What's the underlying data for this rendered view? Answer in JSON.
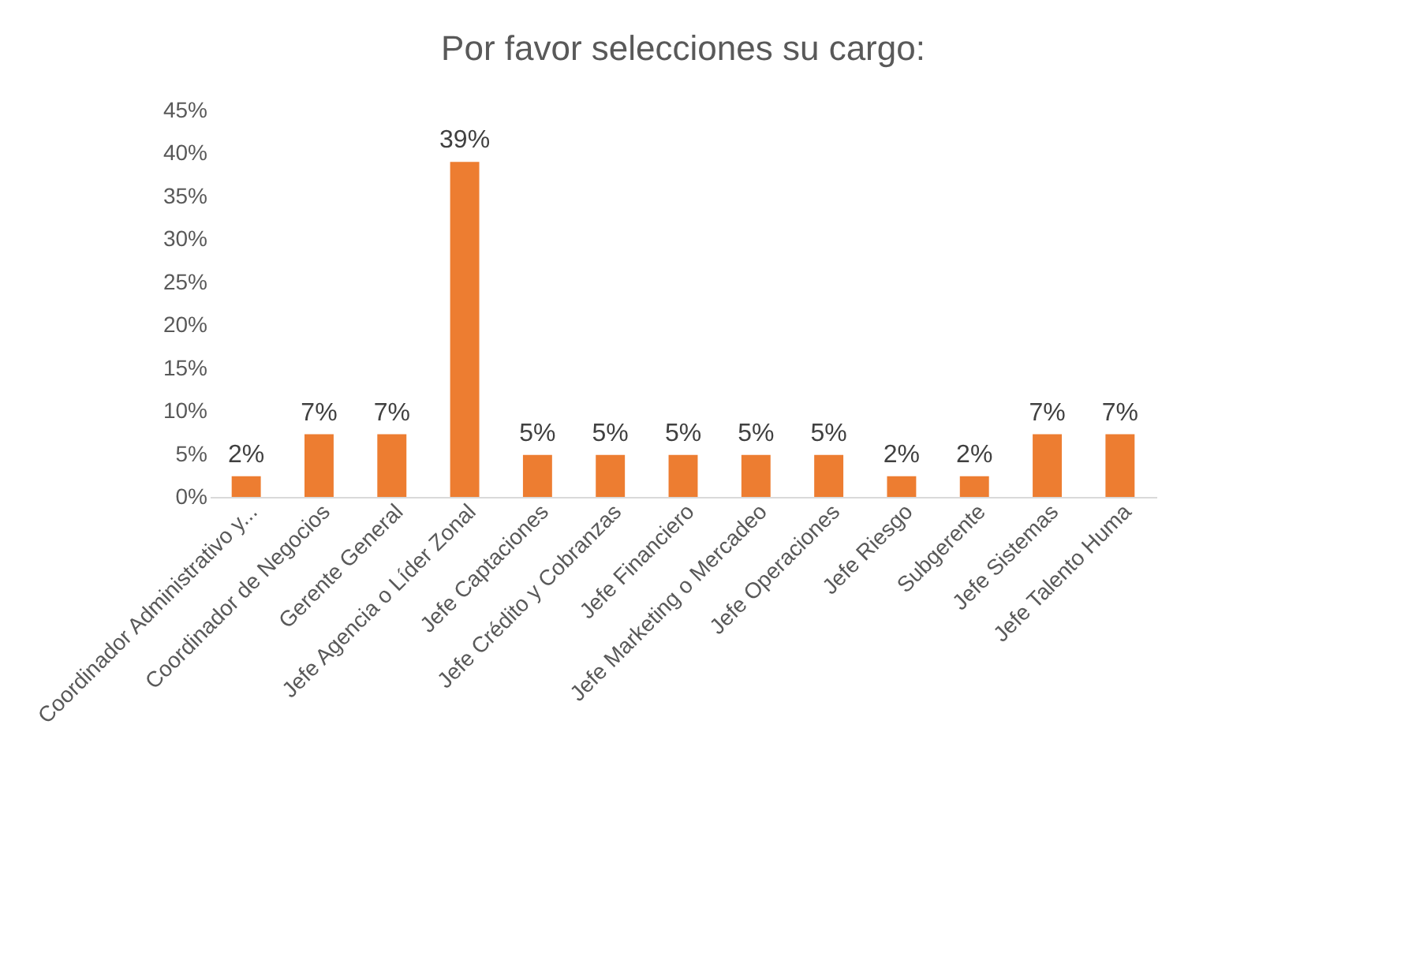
{
  "chart_data": {
    "type": "bar",
    "title": "Por favor selecciones su cargo:",
    "categories": [
      "Coordinador Administrativo y...",
      "Coordinador de Negocios",
      "Gerente General",
      "Jefe Agencia o Líder Zonal",
      "Jefe Captaciones",
      "Jefe Crédito y Cobranzas",
      "Jefe Financiero",
      "Jefe Marketing o Mercadeo",
      "Jefe Operaciones",
      "Jefe Riesgo",
      "Subgerente",
      "Jefe Sistemas",
      "Jefe Talento Huma"
    ],
    "values": [
      2.4,
      7.3,
      7.3,
      39.0,
      4.9,
      4.9,
      4.9,
      4.9,
      4.9,
      2.4,
      2.4,
      7.3,
      7.3
    ],
    "value_labels": [
      "2%",
      "7%",
      "7%",
      "39%",
      "5%",
      "5%",
      "5%",
      "5%",
      "5%",
      "2%",
      "2%",
      "7%",
      "7%"
    ],
    "color": "#ed7d31",
    "ylim": [
      0,
      45
    ],
    "yticks": [
      {
        "value": 0,
        "label": "0%"
      },
      {
        "value": 5,
        "label": "5%"
      },
      {
        "value": 10,
        "label": "10%"
      },
      {
        "value": 15,
        "label": "15%"
      },
      {
        "value": 20,
        "label": "20%"
      },
      {
        "value": 25,
        "label": "25%"
      },
      {
        "value": 30,
        "label": "30%"
      },
      {
        "value": 35,
        "label": "35%"
      },
      {
        "value": 40,
        "label": "40%"
      },
      {
        "value": 45,
        "label": "45%"
      }
    ],
    "grid": false
  }
}
